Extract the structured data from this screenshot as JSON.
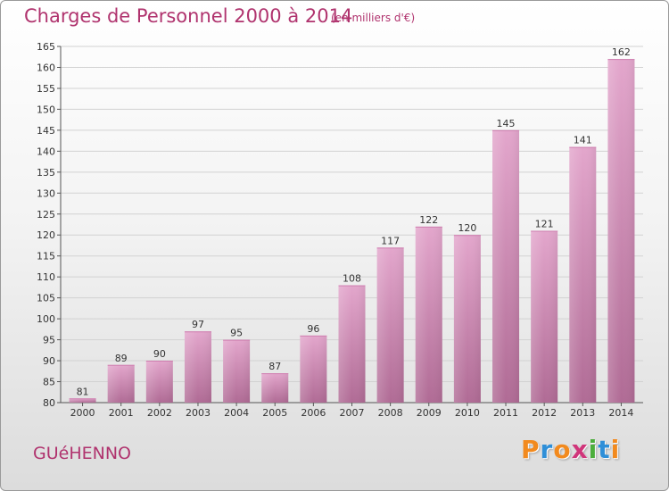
{
  "chart_data": {
    "type": "bar",
    "title": "Charges de Personnel 2000 à 2014",
    "subtitle": "(en milliers d'€)",
    "categories": [
      "2000",
      "2001",
      "2002",
      "2003",
      "2004",
      "2005",
      "2006",
      "2007",
      "2008",
      "2009",
      "2010",
      "2011",
      "2012",
      "2013",
      "2014"
    ],
    "values": [
      81,
      89,
      90,
      97,
      95,
      87,
      96,
      108,
      117,
      122,
      120,
      145,
      121,
      141,
      162
    ],
    "ylim": [
      80,
      165
    ],
    "yticks": [
      80,
      85,
      90,
      95,
      100,
      105,
      110,
      115,
      120,
      125,
      130,
      135,
      140,
      145,
      150,
      155,
      160,
      165
    ],
    "grid": true,
    "bar_color_top": "#e3a6cc",
    "bar_color_bottom": "#b06b95"
  },
  "commune": "GUéHENNO",
  "logo": {
    "letters": [
      "P",
      "r",
      "o",
      "x",
      "i",
      "t",
      "i"
    ],
    "colors": [
      "#f28a1e",
      "#2f8fd8",
      "#f28a1e",
      "#d0357a",
      "#4cae3c",
      "#2f8fd8",
      "#f28a1e"
    ]
  }
}
